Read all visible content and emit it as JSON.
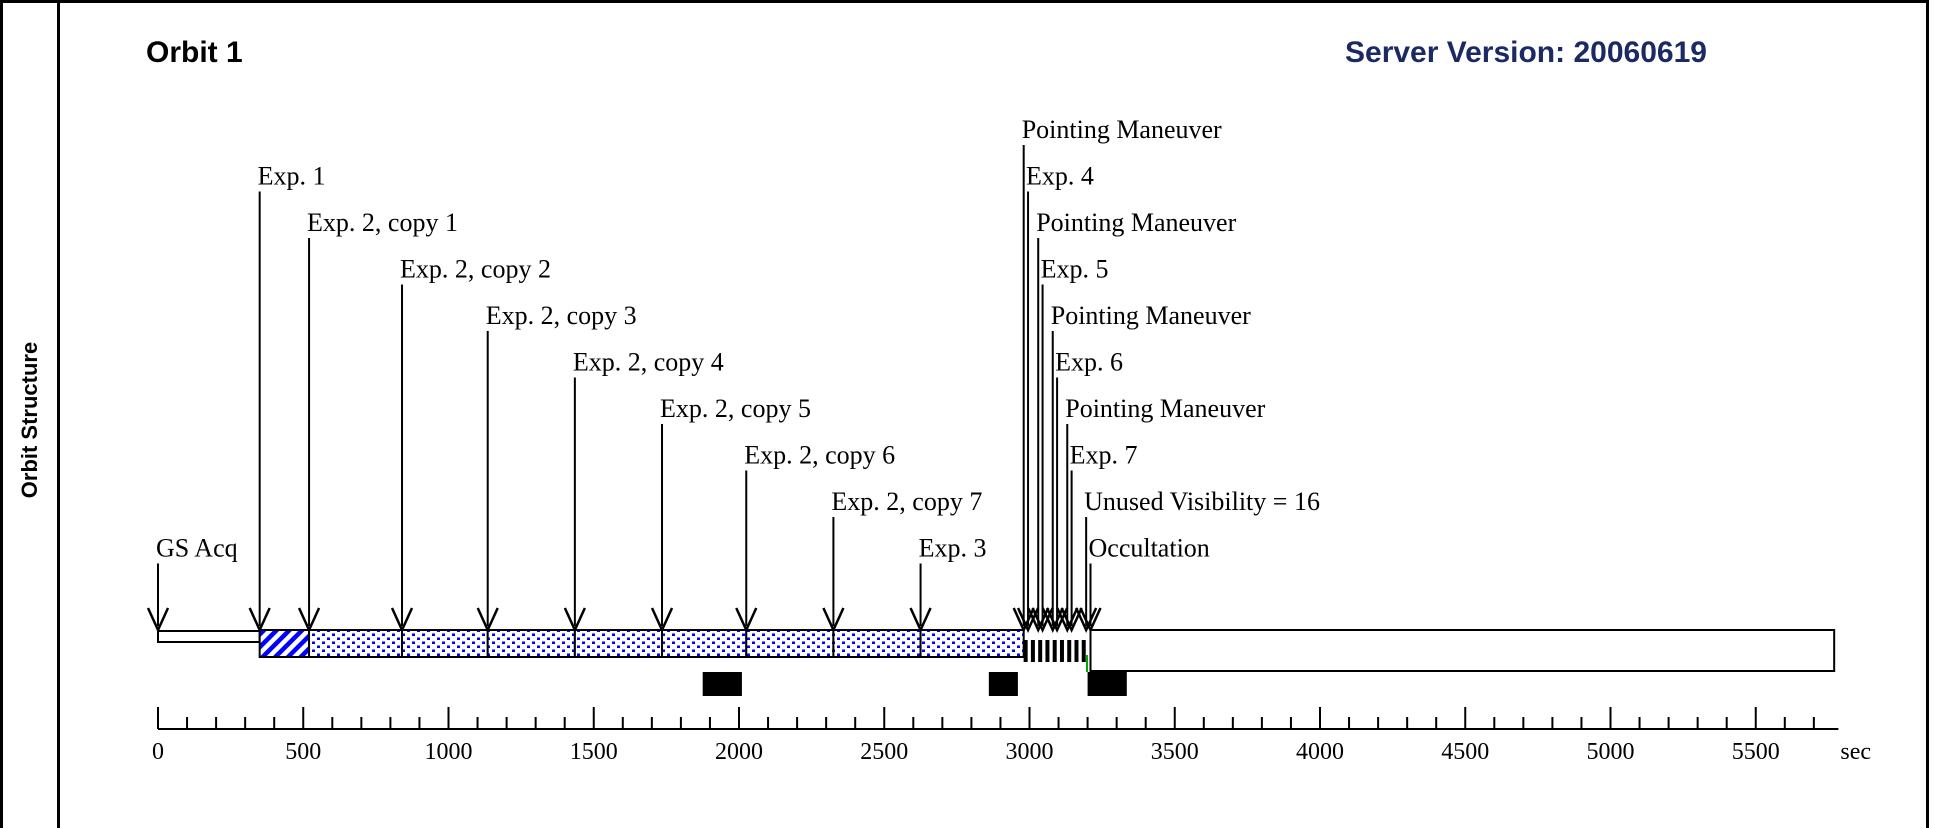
{
  "side_label": "Orbit Structure",
  "title": "Orbit 1",
  "server_version": "Server Version: 20060619",
  "axis": {
    "unit": "sec",
    "min": 0,
    "max": 5750,
    "major_ticks": [
      0,
      500,
      1000,
      1500,
      2000,
      2500,
      3000,
      3500,
      4000,
      4500,
      5000,
      5500
    ],
    "minor_step": 100
  },
  "events": [
    {
      "label": "GS Acq",
      "time": 0,
      "row": 9
    },
    {
      "label": "Exp. 1",
      "time": 350,
      "row": 1
    },
    {
      "label": "Exp. 2, copy 1",
      "time": 520,
      "row": 2
    },
    {
      "label": "Exp. 2, copy 2",
      "time": 840,
      "row": 3
    },
    {
      "label": "Exp. 2, copy 3",
      "time": 1135,
      "row": 4
    },
    {
      "label": "Exp. 2, copy 4",
      "time": 1435,
      "row": 5
    },
    {
      "label": "Exp. 2, copy 5",
      "time": 1735,
      "row": 6
    },
    {
      "label": "Exp. 2, copy 6",
      "time": 2025,
      "row": 7
    },
    {
      "label": "Exp. 2, copy 7",
      "time": 2325,
      "row": 8
    },
    {
      "label": "Exp. 3",
      "time": 2625,
      "row": 9
    },
    {
      "label": "Pointing Maneuver",
      "time": 2980,
      "row": 0
    },
    {
      "label": "Exp. 4",
      "time": 2995,
      "row": 1
    },
    {
      "label": "Pointing Maneuver",
      "time": 3030,
      "row": 2
    },
    {
      "label": "Exp. 5",
      "time": 3045,
      "row": 3
    },
    {
      "label": "Pointing Maneuver",
      "time": 3080,
      "row": 4
    },
    {
      "label": "Exp. 6",
      "time": 3095,
      "row": 5
    },
    {
      "label": "Pointing Maneuver",
      "time": 3130,
      "row": 6
    },
    {
      "label": "Exp. 7",
      "time": 3145,
      "row": 7
    },
    {
      "label": "Unused Visibility = 16",
      "time": 3195,
      "row": 8
    },
    {
      "label": "Occultation",
      "time": 3210,
      "row": 9
    }
  ],
  "segments": [
    {
      "kind": "acq",
      "start": 0,
      "end": 350
    },
    {
      "kind": "hatched",
      "start": 350,
      "end": 520
    },
    {
      "kind": "dotted",
      "start": 520,
      "end": 840
    },
    {
      "kind": "dotted",
      "start": 840,
      "end": 1135
    },
    {
      "kind": "dotted",
      "start": 1135,
      "end": 1435
    },
    {
      "kind": "dotted",
      "start": 1435,
      "end": 1735
    },
    {
      "kind": "dotted",
      "start": 1735,
      "end": 2025
    },
    {
      "kind": "dotted",
      "start": 2025,
      "end": 2325
    },
    {
      "kind": "dotted",
      "start": 2325,
      "end": 2625
    },
    {
      "kind": "dotted",
      "start": 2625,
      "end": 2980
    },
    {
      "kind": "occultation",
      "start": 3210,
      "end": 5770
    }
  ],
  "black_blocks": [
    {
      "start": 1875,
      "end": 2010
    },
    {
      "start": 2860,
      "end": 2960
    },
    {
      "start": 3200,
      "end": 3335
    }
  ],
  "colors": {
    "dot_fill": "#0000ff",
    "hatch": "#0000ff",
    "title_blue": "#1c2a63",
    "marker_green": "#00aa00"
  }
}
